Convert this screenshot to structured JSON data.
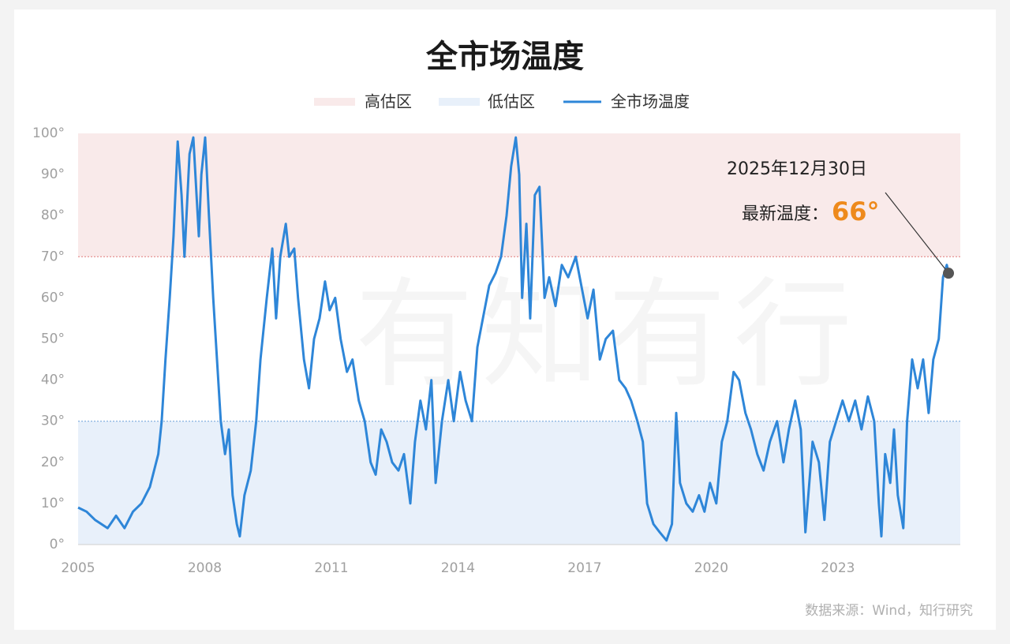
{
  "chart_data": {
    "type": "line",
    "title": "全市场温度",
    "watermark": "有知有行",
    "source": "数据来源：Wind，知行研究",
    "xlim": [
      2005,
      2025.9
    ],
    "xticks": [
      2005,
      2008,
      2011,
      2014,
      2017,
      2020,
      2023
    ],
    "ylim": [
      0,
      100
    ],
    "yticks": [
      {
        "value": 0,
        "label": "0°"
      },
      {
        "value": 10,
        "label": "10°"
      },
      {
        "value": 20,
        "label": "20°"
      },
      {
        "value": 30,
        "label": "30°"
      },
      {
        "value": 40,
        "label": "40°"
      },
      {
        "value": 50,
        "label": "50°"
      },
      {
        "value": 60,
        "label": "60°"
      },
      {
        "value": 70,
        "label": "70°"
      },
      {
        "value": 80,
        "label": "80°"
      },
      {
        "value": 90,
        "label": "90°"
      },
      {
        "value": 100,
        "label": "100°"
      }
    ],
    "bands": [
      {
        "name": "高估区",
        "range": [
          70,
          100
        ],
        "color": "#f9eaea",
        "line_color": "#e07a7a"
      },
      {
        "name": "低估区",
        "range": [
          0,
          30
        ],
        "color": "#e8f0fa",
        "line_color": "#6a9fd8"
      }
    ],
    "x": [
      2005.0,
      2005.2,
      2005.4,
      2005.7,
      2005.9,
      2006.1,
      2006.3,
      2006.5,
      2006.7,
      2006.9,
      2006.98,
      2007.07,
      2007.17,
      2007.26,
      2007.36,
      2007.45,
      2007.52,
      2007.64,
      2007.73,
      2007.86,
      2007.92,
      2008.01,
      2008.1,
      2008.2,
      2008.29,
      2008.38,
      2008.48,
      2008.57,
      2008.66,
      2008.76,
      2008.83,
      2008.94,
      2009.09,
      2009.22,
      2009.32,
      2009.47,
      2009.6,
      2009.69,
      2009.79,
      2009.92,
      2010.0,
      2010.12,
      2010.21,
      2010.35,
      2010.47,
      2010.59,
      2010.72,
      2010.85,
      2010.96,
      2011.09,
      2011.22,
      2011.37,
      2011.5,
      2011.65,
      2011.79,
      2011.93,
      2012.05,
      2012.18,
      2012.31,
      2012.44,
      2012.59,
      2012.72,
      2012.87,
      2012.98,
      2013.11,
      2013.24,
      2013.37,
      2013.47,
      2013.62,
      2013.77,
      2013.9,
      2014.05,
      2014.18,
      2014.33,
      2014.46,
      2014.59,
      2014.74,
      2014.89,
      2015.02,
      2015.15,
      2015.26,
      2015.37,
      2015.45,
      2015.52,
      2015.62,
      2015.71,
      2015.82,
      2015.93,
      2016.05,
      2016.16,
      2016.31,
      2016.46,
      2016.61,
      2016.79,
      2016.94,
      2017.07,
      2017.21,
      2017.36,
      2017.5,
      2017.67,
      2017.82,
      2017.97,
      2018.1,
      2018.25,
      2018.38,
      2018.48,
      2018.63,
      2018.78,
      2018.94,
      2019.07,
      2019.17,
      2019.26,
      2019.41,
      2019.56,
      2019.71,
      2019.84,
      2019.97,
      2020.12,
      2020.25,
      2020.38,
      2020.53,
      2020.66,
      2020.81,
      2020.94,
      2021.09,
      2021.24,
      2021.39,
      2021.56,
      2021.71,
      2021.84,
      2021.99,
      2022.12,
      2022.23,
      2022.4,
      2022.55,
      2022.68,
      2022.81,
      2022.96,
      2023.11,
      2023.26,
      2023.41,
      2023.56,
      2023.71,
      2023.86,
      2023.97,
      2024.03,
      2024.12,
      2024.24,
      2024.33,
      2024.42,
      2024.55,
      2024.64,
      2024.76,
      2024.89,
      2025.02,
      2025.15,
      2025.26,
      2025.39,
      2025.49,
      2025.58,
      2025.62
    ],
    "series": [
      {
        "name": "全市场温度",
        "color": "#2e86d8",
        "values": [
          9,
          8,
          6,
          4,
          7,
          4,
          8,
          10,
          14,
          22,
          30,
          45,
          60,
          75,
          98,
          85,
          70,
          95,
          99,
          75,
          90,
          99,
          80,
          60,
          45,
          30,
          22,
          28,
          12,
          5,
          2,
          12,
          18,
          30,
          45,
          60,
          72,
          55,
          70,
          78,
          70,
          72,
          60,
          45,
          38,
          50,
          55,
          64,
          57,
          60,
          50,
          42,
          45,
          35,
          30,
          20,
          17,
          28,
          25,
          20,
          18,
          22,
          10,
          25,
          35,
          28,
          40,
          15,
          30,
          40,
          30,
          42,
          35,
          30,
          48,
          55,
          63,
          66,
          70,
          80,
          92,
          99,
          90,
          60,
          78,
          55,
          85,
          87,
          60,
          65,
          58,
          68,
          65,
          70,
          62,
          55,
          62,
          45,
          50,
          52,
          40,
          38,
          35,
          30,
          25,
          10,
          5,
          3,
          1,
          5,
          32,
          15,
          10,
          8,
          12,
          8,
          15,
          10,
          25,
          30,
          42,
          40,
          32,
          28,
          22,
          18,
          25,
          30,
          20,
          28,
          35,
          28,
          3,
          25,
          20,
          6,
          25,
          30,
          35,
          30,
          35,
          28,
          36,
          30,
          10,
          2,
          22,
          15,
          28,
          12,
          4,
          30,
          45,
          38,
          45,
          32,
          45,
          50,
          65,
          68,
          66
        ]
      }
    ],
    "annotation": {
      "date": "2025年12月30日",
      "prefix": "最新温度：",
      "value": 66,
      "value_label": "66°",
      "color": "#ee8a1c"
    }
  }
}
